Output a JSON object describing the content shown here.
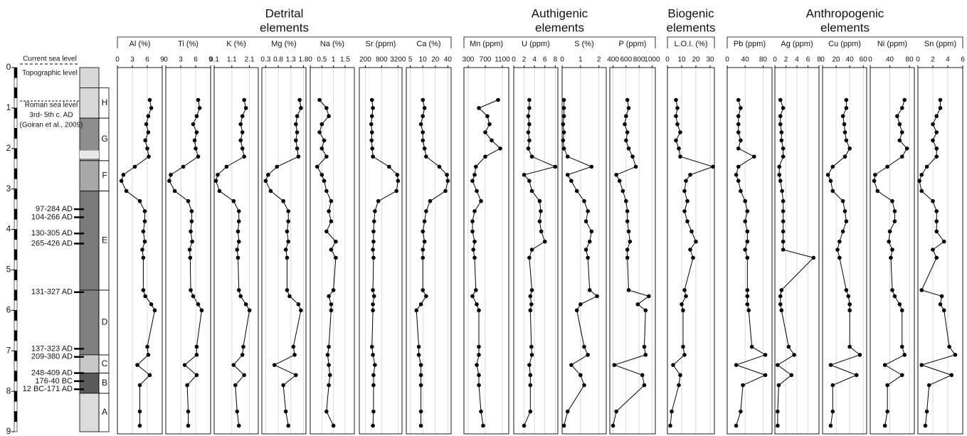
{
  "groups": [
    {
      "lines": [
        "Detrital",
        "elements"
      ]
    },
    {
      "lines": [
        "Authigenic",
        "elements"
      ]
    },
    {
      "lines": [
        "Biogenic",
        "elements"
      ]
    },
    {
      "lines": [
        "Anthropogenic",
        "elements"
      ]
    }
  ],
  "column": {
    "current": "Current sea level",
    "topographic": "Topographic level",
    "roman": [
      "Roman sea level",
      "3rd- 5th c. AD",
      "(Goiran et al., 2009)"
    ],
    "units": [
      "H",
      "G",
      "F",
      "E",
      "D",
      "C",
      "B",
      "A"
    ],
    "dates": [
      "97-284 AD",
      "104-266 AD",
      "130-305 AD",
      "265-426 AD",
      "131-327 AD",
      "137-323 AD",
      "209-380 AD",
      "248-409 AD",
      "176-40 BC",
      "12 BC-171 AD"
    ]
  },
  "depth_axis": {
    "ylim": [
      0,
      9
    ],
    "yticks": [
      0,
      1,
      2,
      3,
      4,
      5,
      6,
      7,
      8,
      9
    ],
    "samples": [
      0.8,
      1.0,
      1.2,
      1.4,
      1.6,
      1.8,
      2.0,
      2.2,
      2.45,
      2.65,
      2.8,
      3.05,
      3.3,
      3.55,
      3.8,
      4.05,
      4.3,
      4.5,
      4.7,
      5.5,
      5.65,
      5.85,
      6.0,
      6.9,
      7.1,
      7.35,
      7.6,
      7.85,
      8.5,
      8.85
    ]
  },
  "chart_data": [
    {
      "type": "line",
      "title": "Al (%)",
      "xlim": [
        0,
        9
      ],
      "xticks": [
        0,
        3,
        6,
        9
      ],
      "values": [
        6.5,
        6.8,
        6.2,
        5.8,
        6.2,
        5.6,
        6.0,
        6.3,
        3.5,
        1.2,
        0.8,
        1.8,
        4.5,
        5.5,
        5.5,
        5.2,
        5.5,
        5.0,
        5.2,
        5.2,
        5.6,
        6.8,
        7.5,
        6.0,
        6.2,
        4.0,
        6.5,
        4.5,
        4.5,
        4.5
      ]
    },
    {
      "type": "line",
      "title": "Ti (%)",
      "xlim": [
        0,
        9
      ],
      "xticks": [
        0,
        3,
        6,
        9
      ],
      "values": [
        6.5,
        6.8,
        6.2,
        5.5,
        6.2,
        5.8,
        6.0,
        6.5,
        3.5,
        1.0,
        0.7,
        1.8,
        4.5,
        5.2,
        5.2,
        5.0,
        5.3,
        4.8,
        4.9,
        5.0,
        5.5,
        6.5,
        7.2,
        6.2,
        6.2,
        3.8,
        6.2,
        4.3,
        4.5,
        4.5
      ]
    },
    {
      "type": "line",
      "title": "K (%)",
      "xlim": [
        0.1,
        2.6
      ],
      "xticks": [
        0.1,
        1.1,
        2.1
      ],
      "values": [
        1.8,
        1.9,
        1.7,
        1.6,
        1.7,
        1.6,
        1.7,
        1.8,
        0.8,
        0.3,
        0.2,
        0.4,
        1.2,
        1.5,
        1.5,
        1.45,
        1.5,
        1.4,
        1.45,
        1.5,
        1.6,
        1.9,
        2.1,
        1.75,
        1.7,
        1.2,
        1.8,
        1.3,
        1.4,
        1.5
      ]
    },
    {
      "type": "line",
      "title": "Mg (%)",
      "xlim": [
        0.15,
        1.9
      ],
      "xticks": [
        0.3,
        0.8,
        1.3,
        1.8
      ],
      "values": [
        1.65,
        1.7,
        1.55,
        1.5,
        1.55,
        1.5,
        1.55,
        1.6,
        0.75,
        0.4,
        0.3,
        0.5,
        1.0,
        1.2,
        1.2,
        1.15,
        1.2,
        1.1,
        1.15,
        1.15,
        1.25,
        1.6,
        1.7,
        1.4,
        1.45,
        0.65,
        1.5,
        1.0,
        1.1,
        1.2
      ]
    },
    {
      "type": "line",
      "title": "Na (%)",
      "xlim": [
        0,
        1.9
      ],
      "xticks": [
        0,
        0.5,
        1,
        1.5
      ],
      "values": [
        0.4,
        0.7,
        0.8,
        0.5,
        0.4,
        0.6,
        0.5,
        0.7,
        0.3,
        0.5,
        0.6,
        0.7,
        0.9,
        0.8,
        0.9,
        0.7,
        1.1,
        0.9,
        1.1,
        1.0,
        0.8,
        0.9,
        0.9,
        0.8,
        0.75,
        0.8,
        0.85,
        0.8,
        0.7,
        1.0
      ]
    },
    {
      "type": "line",
      "title": "Sr (ppm)",
      "log": true,
      "xlim": [
        120,
        4500
      ],
      "xticks": [
        200,
        800,
        3200
      ],
      "values": [
        350,
        380,
        350,
        330,
        350,
        340,
        360,
        380,
        1500,
        3000,
        3200,
        2800,
        600,
        450,
        420,
        400,
        400,
        380,
        400,
        380,
        420,
        380,
        380,
        350,
        380,
        450,
        400,
        400,
        400,
        380
      ]
    },
    {
      "type": "line",
      "title": "Ca (%)",
      "log": true,
      "xlim": [
        4,
        48
      ],
      "xticks": [
        5,
        10,
        20,
        40
      ],
      "values": [
        10,
        11,
        10,
        9,
        10,
        10,
        11,
        12,
        25,
        38,
        40,
        35,
        15,
        12,
        11,
        10,
        11,
        10,
        10,
        10,
        12,
        9,
        7,
        8,
        8,
        9,
        9,
        9,
        9,
        9
      ]
    },
    {
      "type": "line",
      "title": "Mn (ppm)",
      "xlim": [
        200,
        1250
      ],
      "xticks": [
        300,
        700,
        1100
      ],
      "values": [
        1000,
        550,
        750,
        800,
        700,
        850,
        1050,
        700,
        480,
        450,
        400,
        500,
        600,
        450,
        400,
        400,
        450,
        420,
        450,
        480,
        400,
        500,
        550,
        550,
        550,
        500,
        550,
        550,
        600,
        650
      ]
    },
    {
      "type": "line",
      "title": "U (ppm)",
      "xlim": [
        0,
        8.5
      ],
      "xticks": [
        0,
        2,
        4,
        6,
        8
      ],
      "values": [
        3,
        3,
        2.8,
        3,
        2.8,
        3,
        2.8,
        3.5,
        8,
        2,
        3,
        3.5,
        5,
        5.2,
        5,
        5.3,
        6,
        3.5,
        3,
        3.5,
        3.2,
        3.4,
        3.2,
        3.4,
        3.5,
        3,
        3.2,
        3.2,
        3.2,
        2
      ]
    },
    {
      "type": "line",
      "title": "S (%)",
      "xlim": [
        0,
        2.4
      ],
      "xticks": [
        0,
        1,
        2
      ],
      "values": [
        0.1,
        0.1,
        0.1,
        0.05,
        0.1,
        0.05,
        0.1,
        0.3,
        1.6,
        0.3,
        0.5,
        0.8,
        1.2,
        1.4,
        1.3,
        1.6,
        1.5,
        1.3,
        1.4,
        1.5,
        1.9,
        1.0,
        0.8,
        1.2,
        1.4,
        0.5,
        1.0,
        1.2,
        0.3,
        0.1
      ]
    },
    {
      "type": "line",
      "title": "P (ppm)",
      "xlim": [
        350,
        1050
      ],
      "xticks": [
        400,
        600,
        800,
        1000
      ],
      "values": [
        620,
        640,
        600,
        580,
        620,
        600,
        640,
        700,
        750,
        450,
        500,
        550,
        600,
        620,
        620,
        640,
        660,
        620,
        620,
        640,
        950,
        780,
        900,
        880,
        900,
        420,
        850,
        880,
        450,
        400
      ]
    },
    {
      "type": "line",
      "title": "L.O.I. (%)",
      "xlim": [
        0,
        33
      ],
      "xticks": [
        0,
        10,
        20,
        30
      ],
      "values": [
        6,
        7,
        6,
        7,
        9,
        6,
        8,
        9,
        32,
        16,
        13,
        12,
        14,
        12,
        14,
        17,
        20,
        16,
        18,
        12,
        13,
        10,
        11,
        11,
        12,
        4,
        9,
        8,
        3,
        2
      ]
    },
    {
      "type": "line",
      "title": "Pb (ppm)",
      "xlim": [
        0,
        100
      ],
      "xticks": [
        0,
        40,
        80
      ],
      "values": [
        25,
        30,
        25,
        25,
        25,
        30,
        25,
        60,
        25,
        20,
        25,
        30,
        40,
        45,
        40,
        45,
        45,
        40,
        45,
        45,
        45,
        45,
        48,
        55,
        85,
        20,
        85,
        35,
        30,
        20
      ]
    },
    {
      "type": "line",
      "title": "Ag (ppm)",
      "xlim": [
        0,
        8
      ],
      "xticks": [
        0,
        2,
        4,
        6,
        8
      ],
      "values": [
        1,
        1.5,
        1,
        1,
        1.2,
        1.2,
        1.5,
        1.5,
        0.8,
        0.8,
        1,
        1.3,
        1.5,
        1.5,
        1.5,
        1.5,
        1.5,
        1.5,
        7,
        1.2,
        1,
        1,
        1.2,
        2.5,
        3.5,
        0.5,
        3,
        0.7,
        0.5,
        0.5
      ]
    },
    {
      "type": "line",
      "title": "Cu (ppm)",
      "xlim": [
        0,
        65
      ],
      "xticks": [
        0,
        20,
        40,
        60
      ],
      "values": [
        35,
        35,
        30,
        32,
        33,
        35,
        40,
        33,
        15,
        8,
        12,
        15,
        30,
        33,
        35,
        30,
        25,
        22,
        25,
        35,
        38,
        40,
        40,
        40,
        55,
        12,
        50,
        15,
        15,
        12
      ]
    },
    {
      "type": "line",
      "title": "Ni (ppm)",
      "xlim": [
        0,
        90
      ],
      "xticks": [
        0,
        40,
        80
      ],
      "values": [
        70,
        65,
        55,
        60,
        65,
        60,
        75,
        65,
        35,
        10,
        8,
        15,
        45,
        50,
        50,
        40,
        38,
        45,
        42,
        45,
        50,
        60,
        65,
        65,
        70,
        30,
        65,
        35,
        35,
        30
      ]
    },
    {
      "type": "line",
      "title": "Sn (ppm)",
      "xlim": [
        0,
        6
      ],
      "xticks": [
        0,
        2,
        4,
        6
      ],
      "values": [
        3,
        3,
        2.5,
        2,
        2.5,
        2,
        2.5,
        2.5,
        1.2,
        0.5,
        0.2,
        0.5,
        2,
        2.5,
        2.5,
        2.5,
        3.5,
        2,
        2.5,
        0.5,
        3.2,
        3.0,
        3.5,
        4.2,
        5,
        0.5,
        4.5,
        1.5,
        1.2,
        1.0
      ]
    }
  ]
}
